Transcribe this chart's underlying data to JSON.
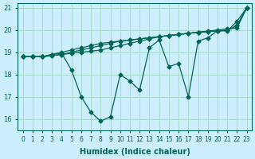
{
  "xlabel": "Humidex (Indice chaleur)",
  "ylabel": "",
  "bg_color": "#cceeff",
  "grid_color": "#aaddcc",
  "line_color": "#006655",
  "xlim": [
    -0.5,
    23.5
  ],
  "ylim": [
    15.5,
    21.2
  ],
  "yticks": [
    16,
    17,
    18,
    19,
    20,
    21
  ],
  "xticks": [
    0,
    1,
    2,
    3,
    4,
    5,
    6,
    7,
    8,
    9,
    10,
    11,
    12,
    13,
    14,
    15,
    16,
    17,
    18,
    19,
    20,
    21,
    22,
    23
  ],
  "series": [
    [
      18.8,
      18.8,
      18.8,
      18.9,
      18.95,
      18.2,
      17.0,
      16.3,
      15.9,
      16.1,
      18.0,
      17.7,
      17.3,
      19.2,
      19.55,
      18.35,
      18.5,
      17.0,
      19.5,
      19.65,
      19.97,
      19.95,
      20.4,
      21.0
    ],
    [
      18.8,
      18.8,
      18.8,
      18.85,
      18.9,
      19.0,
      19.1,
      19.2,
      19.3,
      19.4,
      19.5,
      19.55,
      19.6,
      19.65,
      19.7,
      19.75,
      19.8,
      19.85,
      19.9,
      19.95,
      20.0,
      20.05,
      20.1,
      21.0
    ],
    [
      18.8,
      18.8,
      18.8,
      18.85,
      18.9,
      18.95,
      19.0,
      19.05,
      19.1,
      19.2,
      19.3,
      19.4,
      19.5,
      19.6,
      19.7,
      19.75,
      19.8,
      19.85,
      19.9,
      19.93,
      19.96,
      19.99,
      20.2,
      21.0
    ],
    [
      18.8,
      18.8,
      18.8,
      18.9,
      19.0,
      19.1,
      19.2,
      19.3,
      19.4,
      19.45,
      19.5,
      19.55,
      19.6,
      19.65,
      19.7,
      19.75,
      19.8,
      19.85,
      19.9,
      19.93,
      19.96,
      19.99,
      20.2,
      21.0
    ]
  ]
}
